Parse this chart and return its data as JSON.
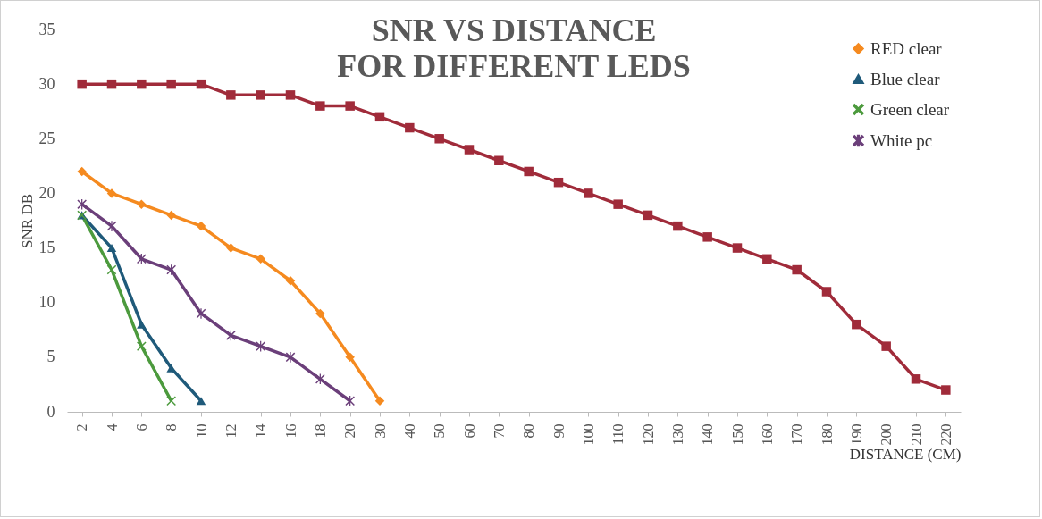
{
  "chart_data": {
    "type": "line",
    "title": "SNR VS DISTANCE FOR DIFFERENT LEDS",
    "xlabel": "DISTANCE (CM)",
    "ylabel": "SNR DB",
    "categories": [
      "2",
      "4",
      "6",
      "8",
      "10",
      "12",
      "14",
      "16",
      "18",
      "20",
      "30",
      "40",
      "50",
      "60",
      "70",
      "80",
      "90",
      "100",
      "110",
      "120",
      "130",
      "140",
      "150",
      "160",
      "170",
      "180",
      "190",
      "200",
      "210",
      "220"
    ],
    "series": [
      {
        "name": "RED clear",
        "color": "#f58a1f",
        "marker": "diamond",
        "values": [
          22,
          20,
          19,
          18,
          17,
          15,
          14,
          12,
          9,
          5,
          1,
          null,
          null,
          null,
          null,
          null,
          null,
          null,
          null,
          null,
          null,
          null,
          null,
          null,
          null,
          null,
          null,
          null,
          null,
          null
        ]
      },
      {
        "color": "#a02b3a",
        "marker": "square",
        "values": [
          30,
          30,
          30,
          30,
          30,
          29,
          29,
          29,
          28,
          28,
          27,
          26,
          25,
          24,
          23,
          22,
          21,
          20,
          19,
          18,
          17,
          16,
          15,
          14,
          13,
          11,
          8,
          6,
          3,
          2
        ]
      },
      {
        "name": "Blue clear",
        "color": "#1f5a7a",
        "marker": "triangle",
        "values": [
          18,
          15,
          8,
          4,
          1,
          null,
          null,
          null,
          null,
          null,
          null,
          null,
          null,
          null,
          null,
          null,
          null,
          null,
          null,
          null,
          null,
          null,
          null,
          null,
          null,
          null,
          null,
          null,
          null,
          null
        ]
      },
      {
        "name": "Green clear",
        "color": "#4c9a3d",
        "marker": "cross",
        "values": [
          18,
          13,
          6,
          1,
          null,
          null,
          null,
          null,
          null,
          null,
          null,
          null,
          null,
          null,
          null,
          null,
          null,
          null,
          null,
          null,
          null,
          null,
          null,
          null,
          null,
          null,
          null,
          null,
          null,
          null
        ]
      },
      {
        "name": "White pc",
        "color": "#6b3f7a",
        "marker": "star",
        "values": [
          19,
          17,
          14,
          13,
          9,
          7,
          6,
          5,
          3,
          1,
          null,
          null,
          null,
          null,
          null,
          null,
          null,
          null,
          null,
          null,
          null,
          null,
          null,
          null,
          null,
          null,
          null,
          null,
          null,
          null
        ]
      }
    ],
    "ylim": [
      0,
      35
    ],
    "yticks": [
      0,
      5,
      10,
      15,
      20,
      25,
      30,
      35
    ],
    "legend": "top right"
  }
}
